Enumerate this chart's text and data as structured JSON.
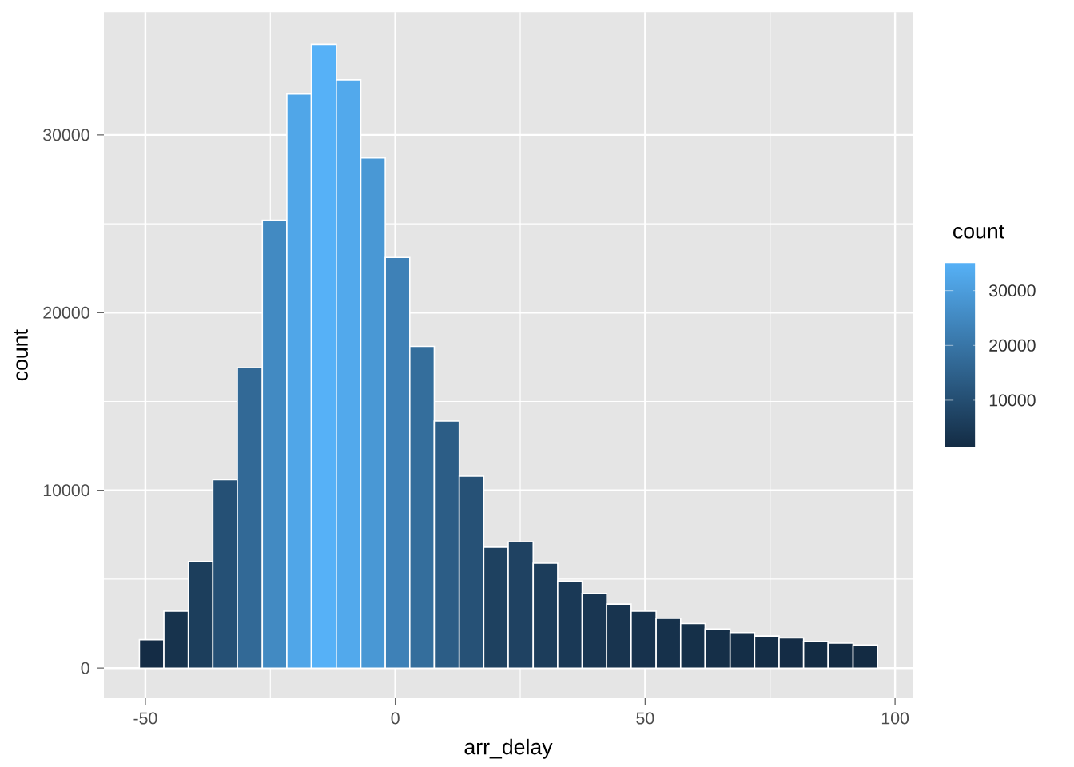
{
  "chart_data": {
    "type": "histogram",
    "xlabel": "arr_delay",
    "ylabel": "count",
    "clabel": "count",
    "bins": [
      -51.2,
      -46.3,
      -41.4,
      -36.5,
      -31.6,
      -26.6,
      -21.7,
      -16.8,
      -11.8,
      -6.9,
      -2,
      2.9,
      7.8,
      12.8,
      17.7,
      22.6,
      27.6,
      32.5,
      37.4,
      42.3,
      47.2,
      52.2,
      57.1,
      62,
      67,
      71.9,
      76.8,
      81.7,
      86.6,
      91.6,
      96.5
    ],
    "values": [
      1600,
      3200,
      6000,
      10600,
      16900,
      25200,
      32300,
      35100,
      33100,
      28700,
      23100,
      18100,
      13900,
      10800,
      6800,
      7100,
      5900,
      4900,
      4200,
      3600,
      3200,
      2800,
      2500,
      2200,
      2000,
      1800,
      1700,
      1500,
      1400,
      1300
    ],
    "colors": [
      "#142c45",
      "#17334d",
      "#1c3e5c",
      "#255075",
      "#326996",
      "#428ac2",
      "#50a6e8",
      "#56b1f7",
      "#52a9ec",
      "#4998d5",
      "#3e81b7",
      "#346e9c",
      "#2c5d86",
      "#265176",
      "#1e4160",
      "#1f4262",
      "#1c3d5b",
      "#1a3956",
      "#193652",
      "#18344f",
      "#17324d",
      "#16314b",
      "#153049",
      "#152f48",
      "#142e47",
      "#142d46",
      "#142c45",
      "#132c44",
      "#132b43",
      "#132b43"
    ],
    "clim": [
      1300,
      35100
    ],
    "cticks": [
      10000,
      20000,
      30000
    ],
    "xlim": [
      -58.3,
      103.5
    ],
    "ylim": [
      -1700,
      36900
    ],
    "xticks": [
      -50,
      0,
      50,
      100
    ],
    "yticks": [
      0,
      10000,
      20000,
      30000
    ],
    "grid": true
  }
}
